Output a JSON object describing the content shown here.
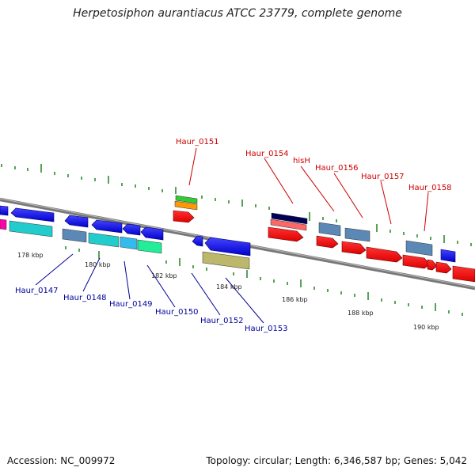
{
  "title": "Herpetosiphon aurantiacus ATCC 23779, complete genome",
  "footer": {
    "accession": "Accession: NC_009972",
    "summary": "Topology: circular; Length: 6,346,587 bp; Genes: 5,042"
  },
  "colors": {
    "forward_gene": "#ff0000",
    "reverse_gene": "#0000ee",
    "top_label": "#cc0000",
    "bottom_label": "#000099",
    "ticks": "#2e8b2e",
    "backbone": "#888888"
  },
  "kbp_labels": [
    "178 kbp",
    "180 kbp",
    "182 kbp",
    "184 kbp",
    "186 kbp",
    "188 kbp",
    "190 kbp"
  ],
  "top_labels": [
    "Haur_0151",
    "Haur_0154",
    "hisH",
    "Haur_0156",
    "Haur_0157",
    "Haur_0158"
  ],
  "bottom_labels": [
    "Haur_0147",
    "Haur_0148",
    "Haur_0149",
    "Haur_0150",
    "Haur_0152",
    "Haur_0153"
  ]
}
